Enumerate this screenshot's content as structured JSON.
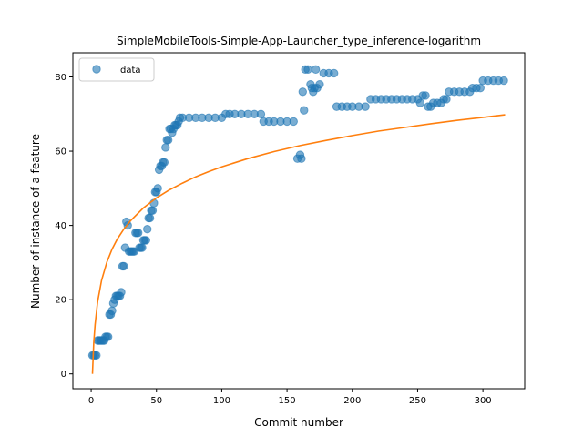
{
  "chart_data": {
    "type": "scatter",
    "title": "SimpleMobileTools-Simple-App-Launcher_type_inference-logarithm",
    "xlabel": "Commit number",
    "ylabel": "Number of instance of a feature",
    "xlim": [
      -14,
      332
    ],
    "ylim": [
      -4,
      86.5
    ],
    "xticks": [
      0,
      50,
      100,
      150,
      200,
      250,
      300
    ],
    "yticks": [
      0,
      20,
      40,
      60,
      80
    ],
    "legend": {
      "position": "upper-left",
      "entries": [
        "data"
      ]
    },
    "grid": false,
    "colors": {
      "data": "#1f77b4",
      "fit": "#ff7f0e"
    },
    "series": [
      {
        "name": "data",
        "kind": "scatter",
        "points": [
          [
            1,
            5
          ],
          [
            2,
            5
          ],
          [
            3,
            5
          ],
          [
            4,
            5
          ],
          [
            5,
            9
          ],
          [
            6,
            9
          ],
          [
            7,
            9
          ],
          [
            8,
            9
          ],
          [
            9,
            9
          ],
          [
            10,
            9
          ],
          [
            11,
            10
          ],
          [
            12,
            10
          ],
          [
            13,
            10
          ],
          [
            14,
            16
          ],
          [
            15,
            16
          ],
          [
            16,
            17
          ],
          [
            17,
            19
          ],
          [
            18,
            20
          ],
          [
            19,
            21
          ],
          [
            20,
            21
          ],
          [
            21,
            21
          ],
          [
            22,
            21
          ],
          [
            23,
            22
          ],
          [
            24,
            29
          ],
          [
            25,
            29
          ],
          [
            26,
            34
          ],
          [
            27,
            41
          ],
          [
            28,
            40
          ],
          [
            29,
            33
          ],
          [
            30,
            33
          ],
          [
            31,
            33
          ],
          [
            32,
            33
          ],
          [
            33,
            33
          ],
          [
            34,
            38
          ],
          [
            35,
            38
          ],
          [
            36,
            38
          ],
          [
            37,
            34
          ],
          [
            38,
            34
          ],
          [
            39,
            34
          ],
          [
            40,
            36
          ],
          [
            41,
            36
          ],
          [
            42,
            36
          ],
          [
            43,
            39
          ],
          [
            44,
            42
          ],
          [
            45,
            42
          ],
          [
            46,
            44
          ],
          [
            47,
            44
          ],
          [
            48,
            46
          ],
          [
            49,
            49
          ],
          [
            50,
            49
          ],
          [
            51,
            50
          ],
          [
            52,
            55
          ],
          [
            53,
            56
          ],
          [
            54,
            56
          ],
          [
            55,
            57
          ],
          [
            56,
            57
          ],
          [
            57,
            61
          ],
          [
            58,
            63
          ],
          [
            59,
            63
          ],
          [
            60,
            66
          ],
          [
            61,
            66
          ],
          [
            62,
            65
          ],
          [
            63,
            66
          ],
          [
            64,
            67
          ],
          [
            65,
            67
          ],
          [
            66,
            67
          ],
          [
            67,
            68
          ],
          [
            68,
            69
          ],
          [
            70,
            69
          ],
          [
            75,
            69
          ],
          [
            80,
            69
          ],
          [
            85,
            69
          ],
          [
            90,
            69
          ],
          [
            95,
            69
          ],
          [
            100,
            69
          ],
          [
            103,
            70
          ],
          [
            106,
            70
          ],
          [
            110,
            70
          ],
          [
            115,
            70
          ],
          [
            120,
            70
          ],
          [
            125,
            70
          ],
          [
            130,
            70
          ],
          [
            132,
            68
          ],
          [
            136,
            68
          ],
          [
            140,
            68
          ],
          [
            145,
            68
          ],
          [
            150,
            68
          ],
          [
            155,
            68
          ],
          [
            158,
            58
          ],
          [
            160,
            59
          ],
          [
            161,
            58
          ],
          [
            162,
            76
          ],
          [
            163,
            71
          ],
          [
            164,
            82
          ],
          [
            166,
            82
          ],
          [
            168,
            78
          ],
          [
            169,
            77
          ],
          [
            170,
            76
          ],
          [
            171,
            77
          ],
          [
            172,
            82
          ],
          [
            173,
            77
          ],
          [
            175,
            78
          ],
          [
            178,
            81
          ],
          [
            182,
            81
          ],
          [
            186,
            81
          ],
          [
            188,
            72
          ],
          [
            192,
            72
          ],
          [
            196,
            72
          ],
          [
            200,
            72
          ],
          [
            205,
            72
          ],
          [
            210,
            72
          ],
          [
            214,
            74
          ],
          [
            218,
            74
          ],
          [
            222,
            74
          ],
          [
            226,
            74
          ],
          [
            230,
            74
          ],
          [
            234,
            74
          ],
          [
            238,
            74
          ],
          [
            242,
            74
          ],
          [
            246,
            74
          ],
          [
            250,
            74
          ],
          [
            252,
            73
          ],
          [
            254,
            75
          ],
          [
            256,
            75
          ],
          [
            258,
            72
          ],
          [
            260,
            72
          ],
          [
            262,
            73
          ],
          [
            265,
            73
          ],
          [
            268,
            73
          ],
          [
            270,
            74
          ],
          [
            272,
            74
          ],
          [
            274,
            76
          ],
          [
            278,
            76
          ],
          [
            282,
            76
          ],
          [
            286,
            76
          ],
          [
            290,
            76
          ],
          [
            292,
            77
          ],
          [
            295,
            77
          ],
          [
            298,
            77
          ],
          [
            300,
            79
          ],
          [
            304,
            79
          ],
          [
            308,
            79
          ],
          [
            312,
            79
          ],
          [
            316,
            79
          ]
        ]
      },
      {
        "name": "",
        "kind": "line",
        "model": "logarithmic fit",
        "points": [
          [
            1,
            0
          ],
          [
            2,
            8.4
          ],
          [
            3,
            13.3
          ],
          [
            5,
            19.5
          ],
          [
            8,
            25.2
          ],
          [
            12,
            30.1
          ],
          [
            16,
            33.6
          ],
          [
            20,
            36.3
          ],
          [
            25,
            39.0
          ],
          [
            30,
            41.2
          ],
          [
            40,
            44.7
          ],
          [
            50,
            47.4
          ],
          [
            60,
            49.6
          ],
          [
            70,
            51.4
          ],
          [
            80,
            53.1
          ],
          [
            90,
            54.5
          ],
          [
            100,
            55.8
          ],
          [
            120,
            58.0
          ],
          [
            140,
            59.9
          ],
          [
            160,
            61.5
          ],
          [
            180,
            62.9
          ],
          [
            200,
            64.2
          ],
          [
            220,
            65.4
          ],
          [
            240,
            66.4
          ],
          [
            260,
            67.4
          ],
          [
            280,
            68.3
          ],
          [
            300,
            69.1
          ],
          [
            317,
            69.8
          ]
        ]
      }
    ]
  }
}
